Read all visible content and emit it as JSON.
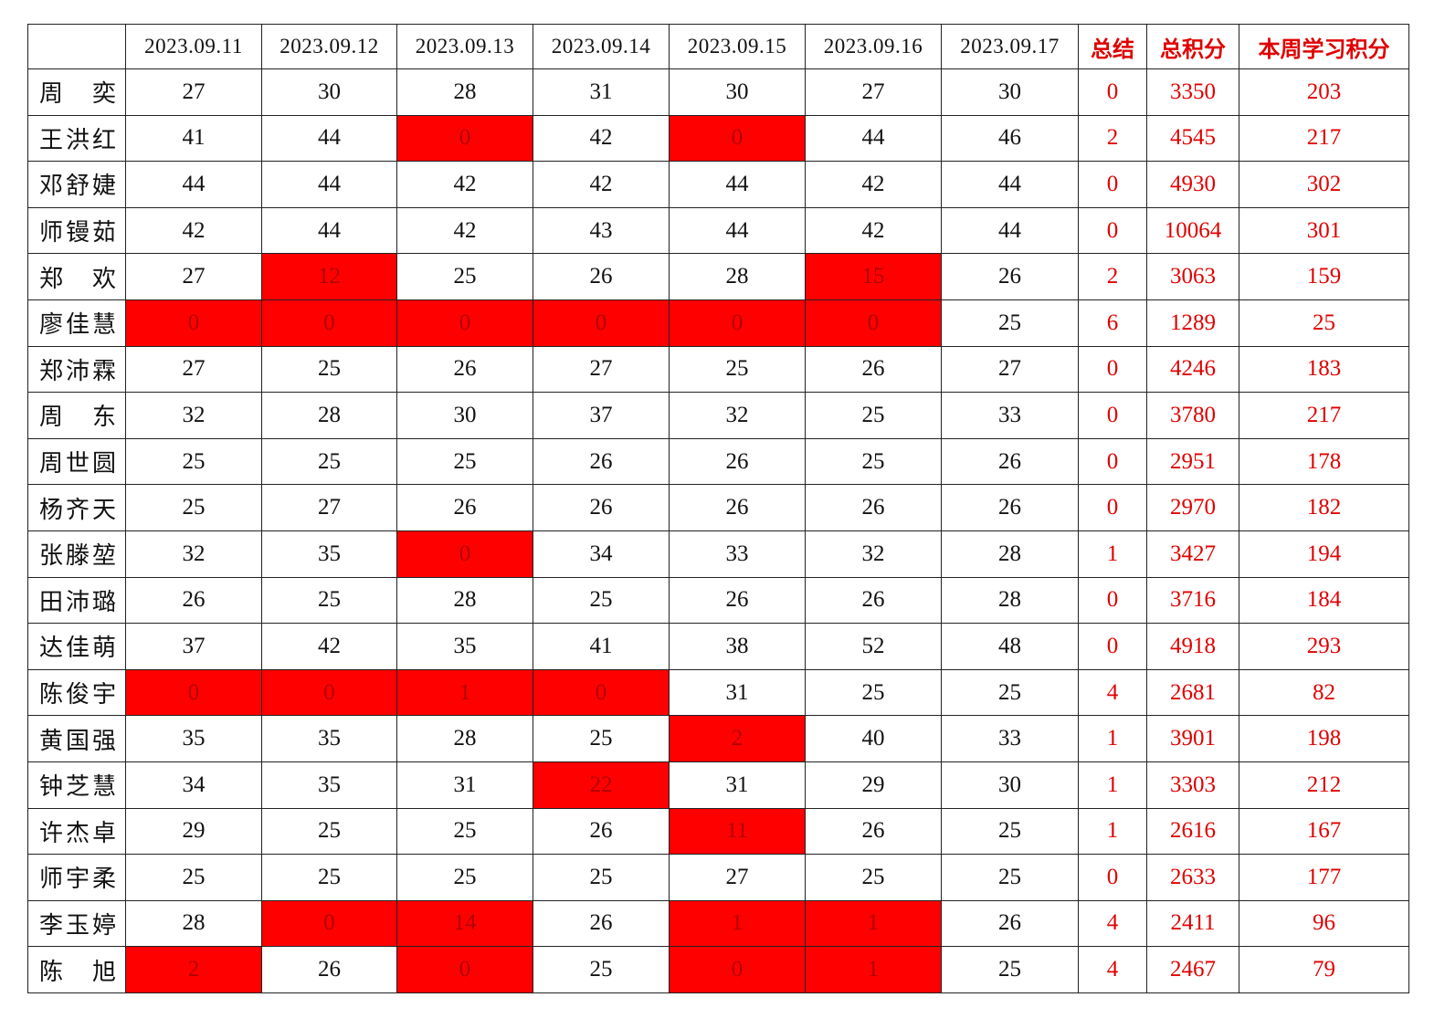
{
  "header": {
    "name_col": "",
    "dates": [
      "2023.09.11",
      "2023.09.12",
      "2023.09.13",
      "2023.09.14",
      "2023.09.15",
      "2023.09.16",
      "2023.09.17"
    ],
    "summary": "总结",
    "total_points": "总积分",
    "week_points": "本周学习积分"
  },
  "colors": {
    "highlight": "#ff0000",
    "summary_text": "#e00000"
  },
  "rows": [
    {
      "name": "周　奕",
      "days": [
        "27",
        "30",
        "28",
        "31",
        "30",
        "27",
        "30"
      ],
      "highlighted": [],
      "summary": "0",
      "total": "3350",
      "week": "203"
    },
    {
      "name": "王洪红",
      "days": [
        "41",
        "44",
        "0",
        "42",
        "0",
        "44",
        "46"
      ],
      "highlighted": [
        2,
        4
      ],
      "summary": "2",
      "total": "4545",
      "week": "217"
    },
    {
      "name": "邓舒婕",
      "days": [
        "44",
        "44",
        "42",
        "42",
        "44",
        "42",
        "44"
      ],
      "highlighted": [],
      "summary": "0",
      "total": "4930",
      "week": "302"
    },
    {
      "name": "师镘茹",
      "days": [
        "42",
        "44",
        "42",
        "43",
        "44",
        "42",
        "44"
      ],
      "highlighted": [],
      "summary": "0",
      "total": "10064",
      "week": "301"
    },
    {
      "name": "郑　欢",
      "days": [
        "27",
        "12",
        "25",
        "26",
        "28",
        "15",
        "26"
      ],
      "highlighted": [
        1,
        5
      ],
      "summary": "2",
      "total": "3063",
      "week": "159"
    },
    {
      "name": "廖佳慧",
      "days": [
        "0",
        "0",
        "0",
        "0",
        "0",
        "0",
        "25"
      ],
      "highlighted": [
        0,
        1,
        2,
        3,
        4,
        5
      ],
      "summary": "6",
      "total": "1289",
      "week": "25"
    },
    {
      "name": "郑沛霖",
      "days": [
        "27",
        "25",
        "26",
        "27",
        "25",
        "26",
        "27"
      ],
      "highlighted": [],
      "summary": "0",
      "total": "4246",
      "week": "183"
    },
    {
      "name": "周　东",
      "days": [
        "32",
        "28",
        "30",
        "37",
        "32",
        "25",
        "33"
      ],
      "highlighted": [],
      "summary": "0",
      "total": "3780",
      "week": "217"
    },
    {
      "name": "周世圆",
      "days": [
        "25",
        "25",
        "25",
        "26",
        "26",
        "25",
        "26"
      ],
      "highlighted": [],
      "summary": "0",
      "total": "2951",
      "week": "178"
    },
    {
      "name": "杨齐天",
      "days": [
        "25",
        "27",
        "26",
        "26",
        "26",
        "26",
        "26"
      ],
      "highlighted": [],
      "summary": "0",
      "total": "2970",
      "week": "182"
    },
    {
      "name": "张滕堃",
      "days": [
        "32",
        "35",
        "0",
        "34",
        "33",
        "32",
        "28"
      ],
      "highlighted": [
        2
      ],
      "summary": "1",
      "total": "3427",
      "week": "194"
    },
    {
      "name": "田沛璐",
      "days": [
        "26",
        "25",
        "28",
        "25",
        "26",
        "26",
        "28"
      ],
      "highlighted": [],
      "summary": "0",
      "total": "3716",
      "week": "184"
    },
    {
      "name": "达佳萌",
      "days": [
        "37",
        "42",
        "35",
        "41",
        "38",
        "52",
        "48"
      ],
      "highlighted": [],
      "summary": "0",
      "total": "4918",
      "week": "293"
    },
    {
      "name": "陈俊宇",
      "days": [
        "0",
        "0",
        "1",
        "0",
        "31",
        "25",
        "25"
      ],
      "highlighted": [
        0,
        1,
        2,
        3
      ],
      "summary": "4",
      "total": "2681",
      "week": "82"
    },
    {
      "name": "黄国强",
      "days": [
        "35",
        "35",
        "28",
        "25",
        "2",
        "40",
        "33"
      ],
      "highlighted": [
        4
      ],
      "summary": "1",
      "total": "3901",
      "week": "198"
    },
    {
      "name": "钟芝慧",
      "days": [
        "34",
        "35",
        "31",
        "22",
        "31",
        "29",
        "30"
      ],
      "highlighted": [
        3
      ],
      "summary": "1",
      "total": "3303",
      "week": "212"
    },
    {
      "name": "许杰卓",
      "days": [
        "29",
        "25",
        "25",
        "26",
        "11",
        "26",
        "25"
      ],
      "highlighted": [
        4
      ],
      "summary": "1",
      "total": "2616",
      "week": "167"
    },
    {
      "name": "师宇柔",
      "days": [
        "25",
        "25",
        "25",
        "25",
        "27",
        "25",
        "25"
      ],
      "highlighted": [],
      "summary": "0",
      "total": "2633",
      "week": "177"
    },
    {
      "name": "李玉婷",
      "days": [
        "28",
        "0",
        "14",
        "26",
        "1",
        "1",
        "26"
      ],
      "highlighted": [
        1,
        2,
        4,
        5
      ],
      "summary": "4",
      "total": "2411",
      "week": "96"
    },
    {
      "name": "陈　旭",
      "days": [
        "2",
        "26",
        "0",
        "25",
        "0",
        "1",
        "25"
      ],
      "highlighted": [
        0,
        2,
        4,
        5
      ],
      "summary": "4",
      "total": "2467",
      "week": "79"
    }
  ]
}
